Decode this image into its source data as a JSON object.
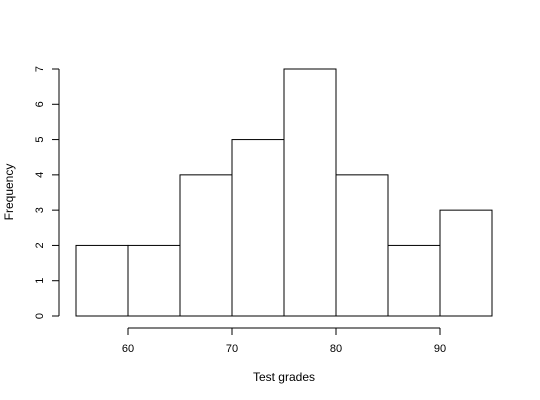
{
  "chart_data": {
    "type": "bar",
    "histogram": true,
    "bin_edges": [
      55,
      60,
      65,
      70,
      75,
      80,
      85,
      90,
      95
    ],
    "values": [
      2,
      2,
      4,
      5,
      7,
      4,
      2,
      3
    ],
    "xlabel": "Test grades",
    "ylabel": "Frequency",
    "xlim": [
      55,
      95
    ],
    "ylim": [
      0,
      7
    ],
    "x_ticks": [
      60,
      70,
      80,
      90
    ],
    "y_ticks": [
      0,
      1,
      2,
      3,
      4,
      5,
      6,
      7
    ],
    "bar_fill": "#ffffff",
    "bar_stroke": "#000000",
    "grid": false
  }
}
